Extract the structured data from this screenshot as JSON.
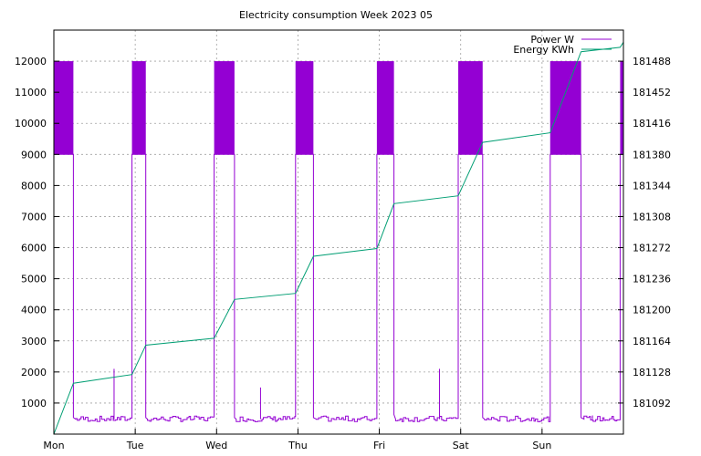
{
  "chart_data": {
    "type": "line",
    "title": "Electricity consumption Week 2023 05",
    "x_ticks": [
      "Mon",
      "Tue",
      "Wed",
      "Thu",
      "Fri",
      "Sat",
      "Sun"
    ],
    "xlim_days": [
      0,
      7
    ],
    "y_left": {
      "range": [
        0,
        13000
      ],
      "ticks": [
        1000,
        2000,
        3000,
        4000,
        5000,
        6000,
        7000,
        8000,
        9000,
        10000,
        11000,
        12000
      ]
    },
    "y_right": {
      "range": [
        181056,
        181524
      ],
      "ticks": [
        181092,
        181128,
        181164,
        181200,
        181236,
        181272,
        181308,
        181344,
        181380,
        181416,
        181452,
        181488
      ]
    },
    "grid": true,
    "legend_position": "top-right",
    "colors": {
      "power": "#9400d3",
      "energy": "#009e73",
      "grid": "#a0a0a0"
    },
    "series": [
      {
        "name": "Power W",
        "axis": "left",
        "style": "step",
        "baseline_w": 480,
        "bursts": [
          {
            "start": 0.0,
            "end": 0.24,
            "low": 9000,
            "high": 12000
          },
          {
            "start": 0.96,
            "end": 1.13,
            "low": 9000,
            "high": 12000
          },
          {
            "start": 1.97,
            "end": 2.22,
            "low": 9000,
            "high": 12000
          },
          {
            "start": 2.97,
            "end": 3.19,
            "low": 9000,
            "high": 12000
          },
          {
            "start": 3.97,
            "end": 4.18,
            "low": 9000,
            "high": 12000
          },
          {
            "start": 4.97,
            "end": 5.27,
            "low": 9000,
            "high": 12000
          },
          {
            "start": 6.1,
            "end": 6.48,
            "low": 9000,
            "high": 12000
          },
          {
            "start": 6.96,
            "end": 7.0,
            "low": 9000,
            "high": 12000
          }
        ],
        "spikes": [
          {
            "x": 0.74,
            "y": 2100
          },
          {
            "x": 2.54,
            "y": 1500
          },
          {
            "x": 4.74,
            "y": 2100
          },
          {
            "x": 6.62,
            "y": 600
          }
        ]
      },
      {
        "name": "Energy KWh",
        "axis": "right",
        "x": [
          0.0,
          0.24,
          0.96,
          1.13,
          1.97,
          2.22,
          2.97,
          3.19,
          3.97,
          4.18,
          4.97,
          5.27,
          6.1,
          6.48,
          6.96,
          7.0
        ],
        "y": [
          181056,
          181115,
          181125,
          181159,
          181167,
          181212,
          181219,
          181262,
          181271,
          181323,
          181332,
          181394,
          181405,
          181499,
          181504,
          181510
        ]
      }
    ]
  }
}
